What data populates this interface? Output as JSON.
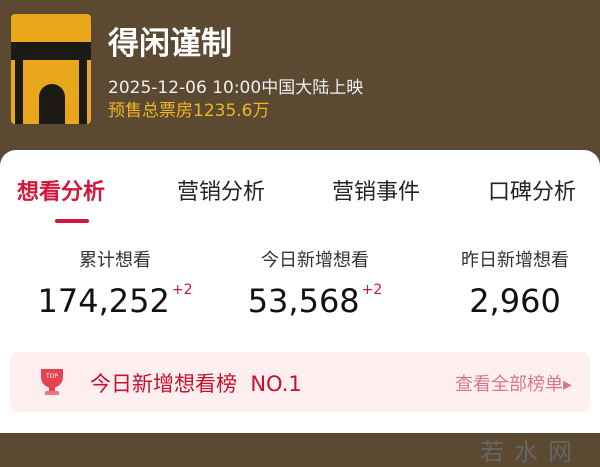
{
  "movie": {
    "title": "得闲谨制",
    "release": "2025-12-06 10:00中国大陆上映",
    "presale": "预售总票房1235.6万",
    "poster_text": "得闲谨制"
  },
  "tabs": [
    {
      "label": "想看分析",
      "active": true
    },
    {
      "label": "营销分析"
    },
    {
      "label": "营销事件"
    },
    {
      "label": "口碑分析"
    }
  ],
  "stats": [
    {
      "label": "累计想看",
      "value": "174,252",
      "increment": "+2"
    },
    {
      "label": "今日新增想看",
      "value": "53,568",
      "increment": "+2"
    },
    {
      "label": "昨日新增想看",
      "value": "2,960"
    }
  ],
  "ranking": {
    "badge": "TOP",
    "text": "今日新增想看榜  NO.1",
    "link": "查看全部榜单▸"
  },
  "watermark": "若水网",
  "colors": {
    "accent": "#d4163c",
    "header_bg": "#5b4a31",
    "presale": "#f0b624"
  }
}
